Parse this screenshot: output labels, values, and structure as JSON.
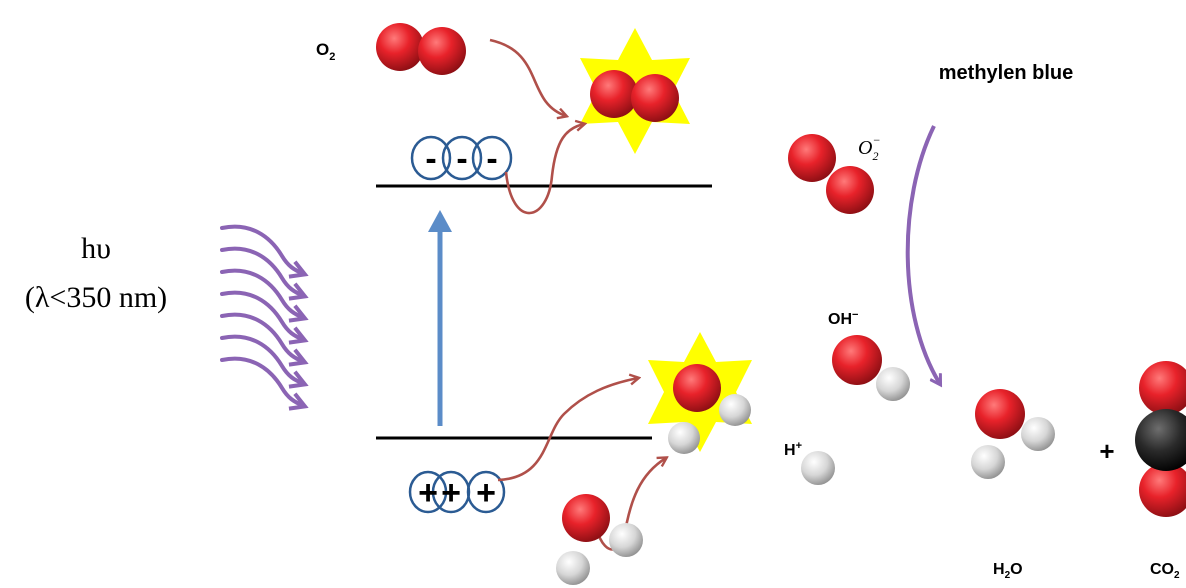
{
  "light": {
    "symbol": "hυ",
    "wavelength": "(λ<350 nm)"
  },
  "labels": {
    "oxygen": {
      "base": "O",
      "sub": "2"
    },
    "superoxide": {
      "base": "O",
      "sub": "2",
      "sup": "−"
    },
    "hydroxide": {
      "base": "OH",
      "sup": "−"
    },
    "proton": {
      "base": "H",
      "sup": "+"
    },
    "water": {
      "base": "H",
      "sub": "2",
      "tail": "O"
    },
    "carbon_dioxide": {
      "base": "CO",
      "sub": "2"
    },
    "pollutant": "methylen blue",
    "plus_sign": "+"
  },
  "charges": {
    "electron": "-",
    "hole": "+"
  },
  "colors": {
    "oxygen_atom": "#e8222a",
    "hydrogen_atom": "#d0d0d0",
    "carbon_atom": "#2a2a2a",
    "excited_star": "#ffff00",
    "charge_ring": "#2b5b93",
    "excitation_arrow": "#5b8cc8",
    "reaction_arrow": "#b0504a",
    "light_arrow": "#8b64b4",
    "band_line": "#000000"
  }
}
